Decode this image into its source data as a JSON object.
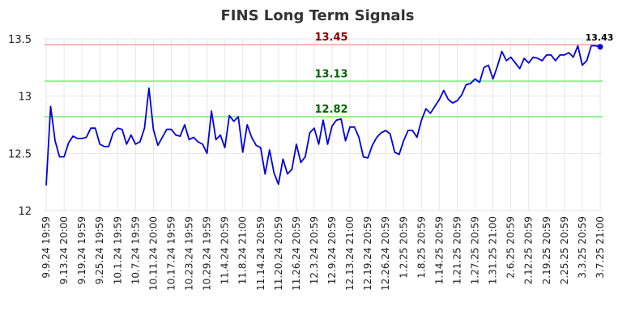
{
  "chart_data": {
    "type": "line",
    "title": "FINS Long Term Signals",
    "xlabel": "",
    "ylabel": "",
    "ylim": [
      12,
      13.5
    ],
    "yticks": [
      "12",
      "12.5",
      "13",
      "13.5"
    ],
    "grid": true,
    "x_tick_labels": [
      "9.9.24 19:59",
      "9.13.24 20:00",
      "9.19.24 19:59",
      "9.25.24 19:59",
      "10.1.24 19:59",
      "10.7.24 19:59",
      "10.11.24 20:00",
      "10.17.24 19:59",
      "10.23.24 19:59",
      "10.29.24 19:59",
      "11.4.24 20:59",
      "11.8.24 21:00",
      "11.14.24 20:59",
      "11.20.24 20:59",
      "11.26.24 20:59",
      "12.3.24 20:59",
      "12.9.24 20:59",
      "12.13.24 21:00",
      "12.19.24 20:59",
      "12.26.24 20:59",
      "1.2.25 20:59",
      "1.8.25 20:59",
      "1.14.25 20:59",
      "1.21.25 20:59",
      "1.27.25 20:59",
      "1.31.25 21:00",
      "2.6.25 20:59",
      "2.12.25 20:59",
      "2.19.25 20:59",
      "2.25.25 20:59",
      "3.3.25 20:59",
      "3.7.25 21:00"
    ],
    "series": [
      {
        "color": "#0000dd",
        "values": [
          12.22,
          12.91,
          12.61,
          12.47,
          12.47,
          12.59,
          12.65,
          12.63,
          12.63,
          12.64,
          12.72,
          12.72,
          12.58,
          12.56,
          12.56,
          12.68,
          12.72,
          12.71,
          12.58,
          12.66,
          12.58,
          12.6,
          12.72,
          13.07,
          12.71,
          12.57,
          12.64,
          12.71,
          12.71,
          12.66,
          12.65,
          12.75,
          12.62,
          12.64,
          12.6,
          12.58,
          12.5,
          12.87,
          12.62,
          12.66,
          12.55,
          12.83,
          12.78,
          12.82,
          12.51,
          12.75,
          12.64,
          12.57,
          12.55,
          12.32,
          12.53,
          12.33,
          12.23,
          12.45,
          12.32,
          12.36,
          12.58,
          12.42,
          12.47,
          12.68,
          12.72,
          12.58,
          12.79,
          12.58,
          12.74,
          12.79,
          12.8,
          12.61,
          12.73,
          12.73,
          12.64,
          12.47,
          12.46,
          12.57,
          12.64,
          12.68,
          12.7,
          12.67,
          12.51,
          12.49,
          12.61,
          12.7,
          12.7,
          12.64,
          12.79,
          12.89,
          12.85,
          12.91,
          12.97,
          13.05,
          12.97,
          12.94,
          12.96,
          13.01,
          13.1,
          13.11,
          13.15,
          13.12,
          13.25,
          13.27,
          13.15,
          13.26,
          13.39,
          13.31,
          13.34,
          13.29,
          13.24,
          13.33,
          13.29,
          13.34,
          13.33,
          13.31,
          13.36,
          13.36,
          13.31,
          13.36,
          13.36,
          13.38,
          13.34,
          13.44,
          13.27,
          13.31,
          13.44,
          13.44,
          13.43
        ]
      }
    ],
    "hlines": [
      {
        "value": 13.45,
        "label": "13.45",
        "line_color": "#ffb3b3",
        "text_color": "#8b0000"
      },
      {
        "value": 13.13,
        "label": "13.13",
        "line_color": "#90ee90",
        "text_color": "#006400"
      },
      {
        "value": 12.82,
        "label": "12.82",
        "line_color": "#90ee90",
        "text_color": "#006400"
      }
    ],
    "last_point_label": "13.43"
  }
}
